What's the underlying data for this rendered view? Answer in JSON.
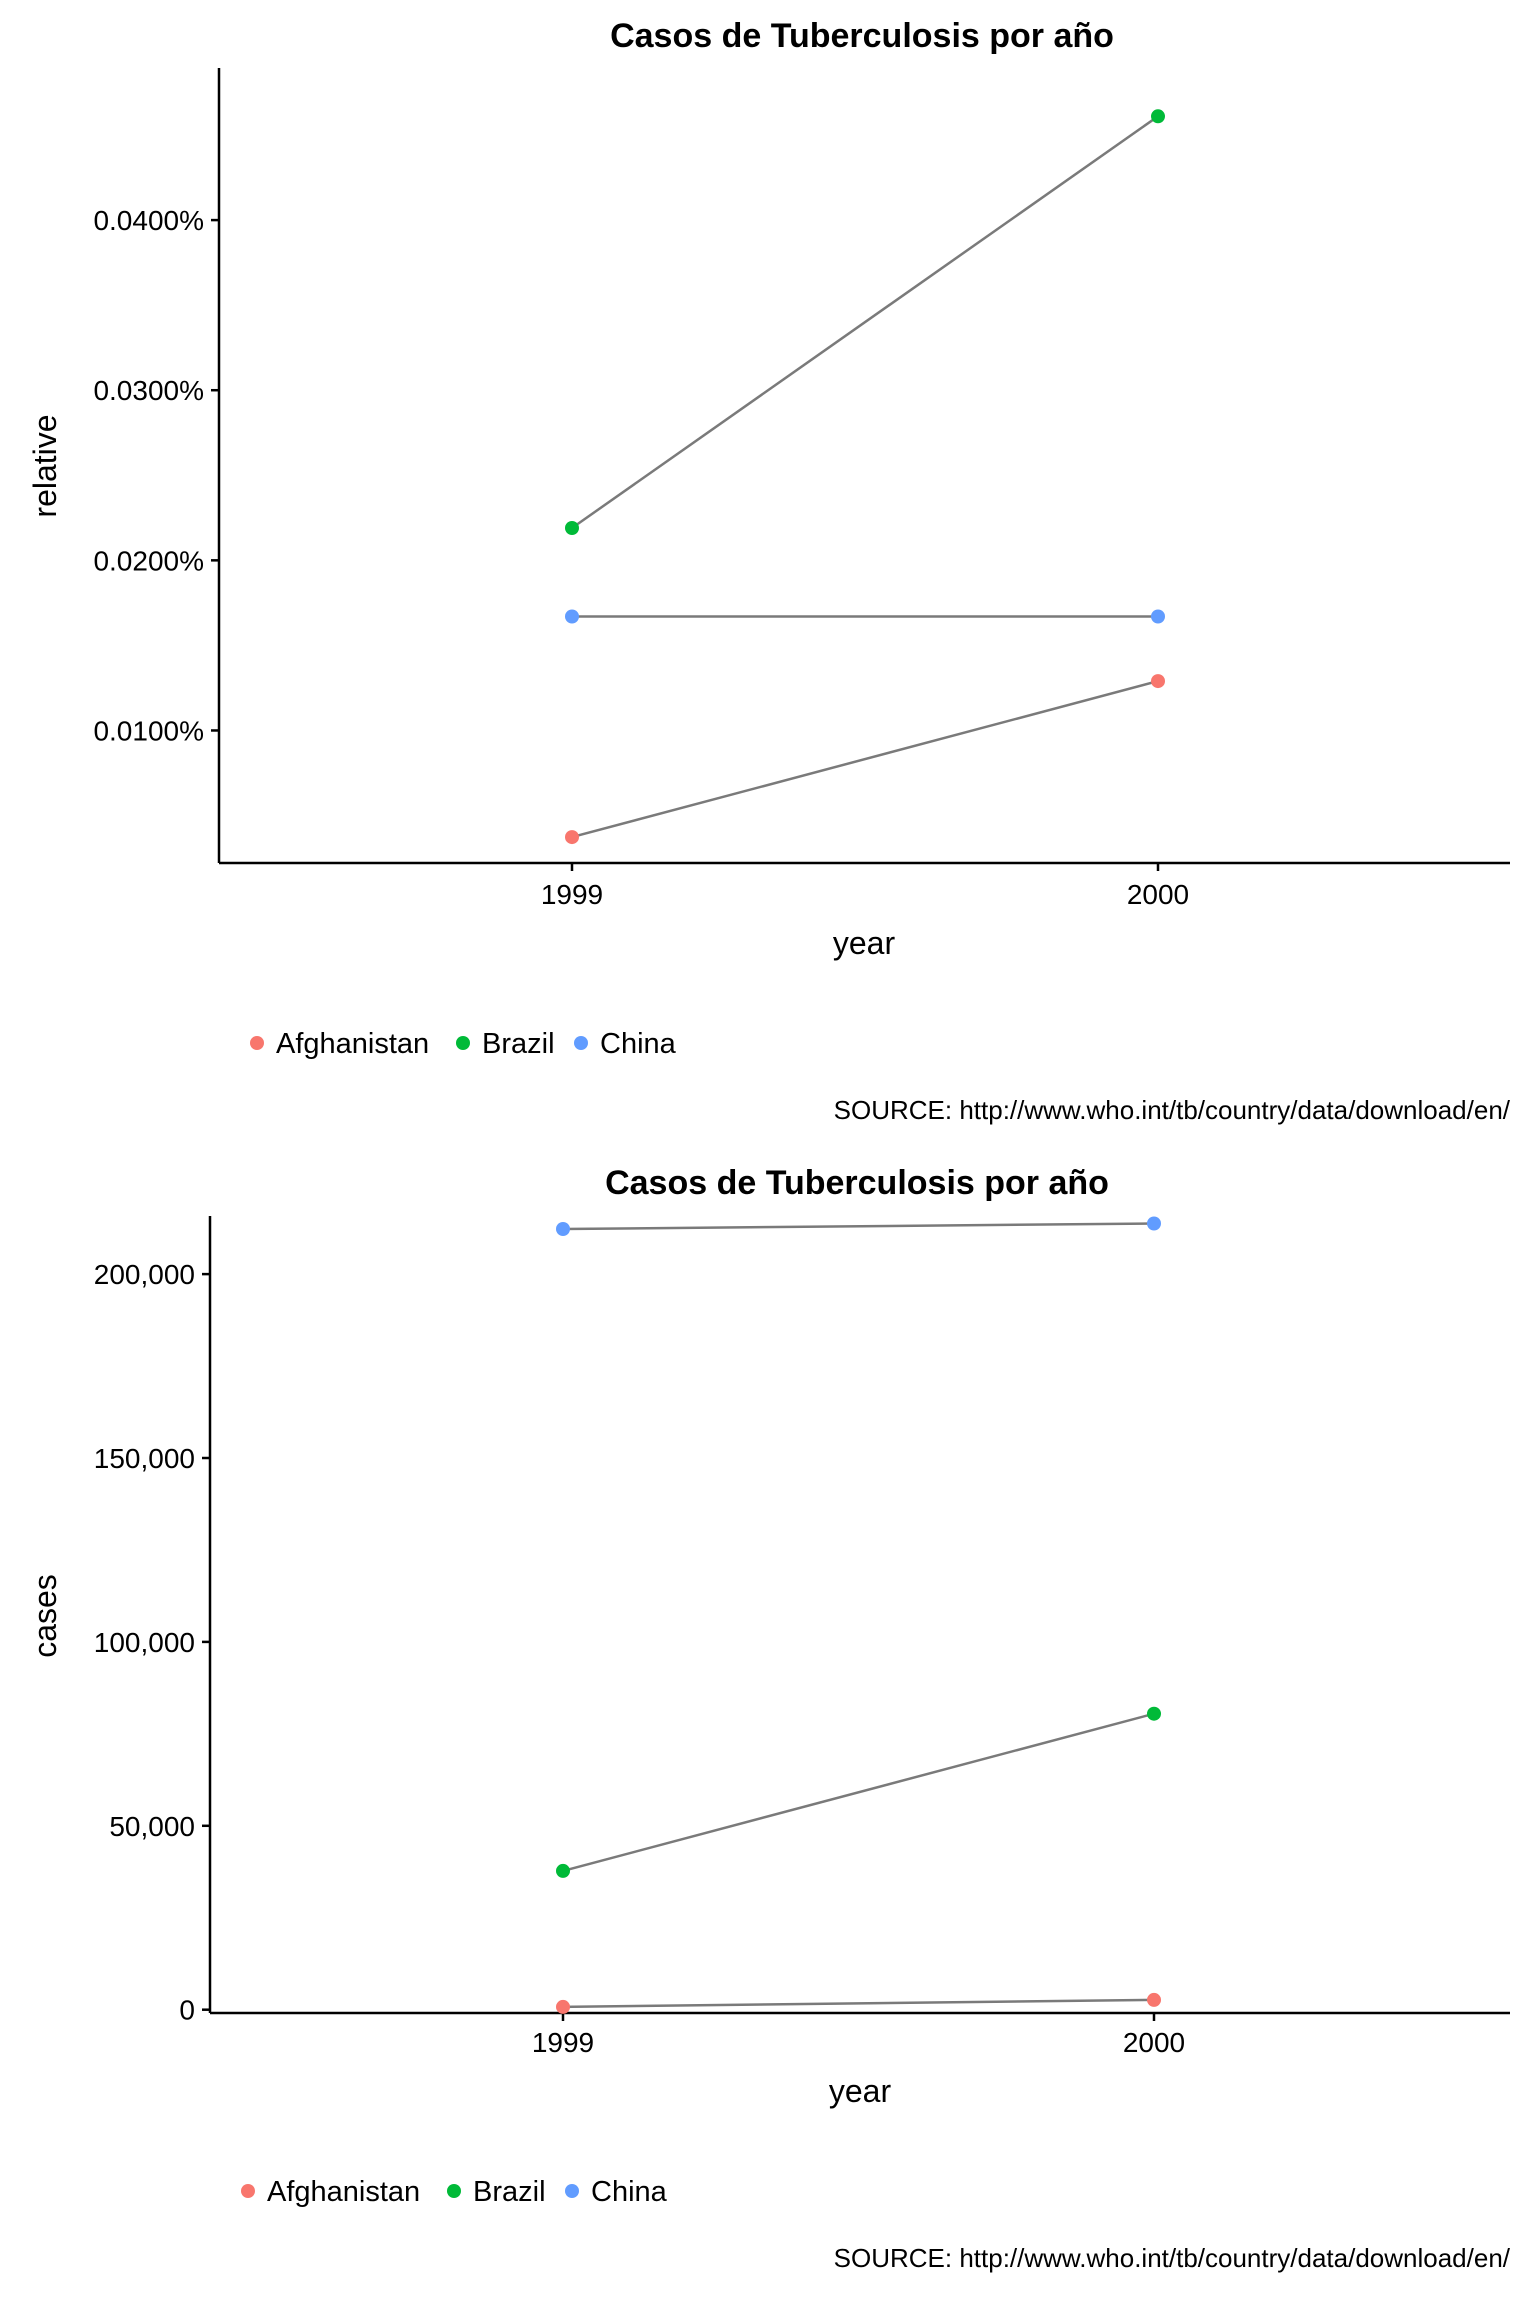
{
  "chart_data": [
    {
      "type": "line",
      "title": "Casos de Tuberculosis por año",
      "xlabel": "year",
      "ylabel": "relative",
      "x_categories": [
        "1999",
        "2000"
      ],
      "y_ticks": [
        0.0001,
        0.0002,
        0.0003,
        0.0004
      ],
      "y_tick_labels": [
        "0.0100%",
        "0.0200%",
        "0.0300%",
        "0.0400%"
      ],
      "ylim": [
        2.21e-05,
        0.0004894
      ],
      "series": [
        {
          "name": "Afghanistan",
          "color": "#F8766D",
          "values": [
            3.73e-05,
            0.000129
          ]
        },
        {
          "name": "Brazil",
          "color": "#00BA38",
          "values": [
            0.000219,
            0.000461
          ]
        },
        {
          "name": "China",
          "color": "#619CFF",
          "values": [
            0.000167,
            0.000167
          ]
        }
      ],
      "line_color": "#7a7a7a",
      "legend": {
        "position": "bottom",
        "items": [
          "Afghanistan",
          "Brazil",
          "China"
        ]
      },
      "caption": "SOURCE: http://www.who.int/tb/country/data/download/en/",
      "grid": false
    },
    {
      "type": "line",
      "title": "Casos de Tuberculosis por año",
      "xlabel": "year",
      "ylabel": "cases",
      "x_categories": [
        "1999",
        "2000"
      ],
      "y_ticks": [
        0,
        50000,
        100000,
        150000,
        200000
      ],
      "y_tick_labels": [
        "0",
        "50,000",
        "100,000",
        "150,000",
        "200,000"
      ],
      "ylim": [
        -900,
        215800
      ],
      "series": [
        {
          "name": "Afghanistan",
          "color": "#F8766D",
          "values": [
            745,
            2666
          ]
        },
        {
          "name": "Brazil",
          "color": "#00BA38",
          "values": [
            37737,
            80488
          ]
        },
        {
          "name": "China",
          "color": "#619CFF",
          "values": [
            212258,
            213766
          ]
        }
      ],
      "line_color": "#7a7a7a",
      "legend": {
        "position": "bottom",
        "items": [
          "Afghanistan",
          "Brazil",
          "China"
        ]
      },
      "caption": "SOURCE: http://www.who.int/tb/country/data/download/en/",
      "grid": false
    }
  ]
}
